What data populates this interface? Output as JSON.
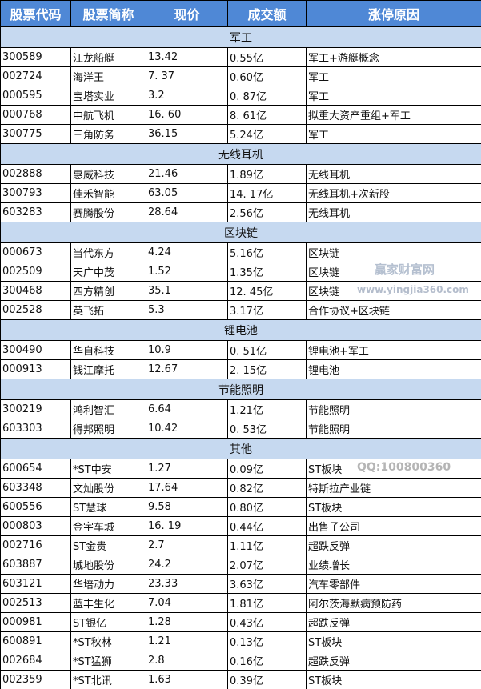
{
  "headers": [
    "股票代码",
    "股票简称",
    "现价",
    "成交额",
    "涨停原因"
  ],
  "sections": [
    {
      "name": "军工",
      "rows": [
        [
          "300589",
          "江龙船艇",
          "13.42",
          "0.55亿",
          "军工+游艇概念"
        ],
        [
          "002724",
          "海洋王",
          "7. 37",
          "0.60亿",
          "军工"
        ],
        [
          "000595",
          "宝塔实业",
          "3.2",
          "0. 87亿",
          "军工"
        ],
        [
          "000768",
          "中航飞机",
          "16. 60",
          "8. 61亿",
          "拟重大资产重组+军工"
        ],
        [
          "300775",
          "三角防务",
          "36.15",
          "5.24亿",
          "军工"
        ]
      ]
    },
    {
      "name": "无线耳机",
      "rows": [
        [
          "002888",
          "惠威科技",
          "21.46",
          "1.89亿",
          "无线耳机"
        ],
        [
          "300793",
          "佳禾智能",
          "63.05",
          "14. 17亿",
          "无线耳机+次新股"
        ],
        [
          "603283",
          "赛腾股份",
          "28.64",
          "2.56亿",
          "无线耳机"
        ]
      ]
    },
    {
      "name": "区块链",
      "rows": [
        [
          "000673",
          "当代东方",
          "4.24",
          "5.16亿",
          "区块链"
        ],
        [
          "002509",
          "天广中茂",
          "1.52",
          "1.35亿",
          "区块链"
        ],
        [
          "300468",
          "四方精创",
          "35.1",
          "12. 45亿",
          "区块链"
        ],
        [
          "002528",
          "英飞拓",
          "5.3",
          "3.17亿",
          "合作协议+区块链"
        ]
      ]
    },
    {
      "name": "锂电池",
      "rows": [
        [
          "300490",
          "华自科技",
          "10.9",
          "0. 51亿",
          "锂电池+军工"
        ],
        [
          "000913",
          "钱江摩托",
          "12.67",
          "2. 15亿",
          "锂电池"
        ]
      ]
    },
    {
      "name": "节能照明",
      "rows": [
        [
          "300219",
          "鸿利智汇",
          "6.64",
          "1.21亿",
          "节能照明"
        ],
        [
          "603303",
          "得邦照明",
          "10.42",
          "0. 53亿",
          "节能照明"
        ]
      ]
    },
    {
      "name": "其他",
      "rows": [
        [
          "600654",
          "*ST中安",
          "1.27",
          "0.09亿",
          "ST板块"
        ],
        [
          "603348",
          "文灿股份",
          "17.64",
          "0.82亿",
          "特斯拉产业链"
        ],
        [
          "600556",
          "ST慧球",
          "9.58",
          "0.80亿",
          "ST板块"
        ],
        [
          "000803",
          "金宇车城",
          "16. 19",
          "0.44亿",
          "出售子公司"
        ],
        [
          "002716",
          "ST金贵",
          "2.7",
          "1.11亿",
          "超跌反弹"
        ],
        [
          "603887",
          "城地股份",
          "24.2",
          "2.07亿",
          "业绩增长"
        ],
        [
          "603121",
          "华培动力",
          "23.33",
          "3.63亿",
          "汽车零部件"
        ],
        [
          "002513",
          "蓝丰生化",
          "7.04",
          "1.81亿",
          "阿尔茨海默病预防药"
        ],
        [
          "000981",
          "ST银亿",
          "1.28",
          "0.43亿",
          "超跌反弹"
        ],
        [
          "600891",
          "*ST秋林",
          "1.21",
          "0.13亿",
          "ST板块"
        ],
        [
          "002684",
          "*ST猛狮",
          "2.8",
          "0.16亿",
          "超跌反弹"
        ],
        [
          "002359",
          "*ST北讯",
          "1.63",
          "0.39亿",
          "ST板块"
        ]
      ]
    }
  ],
  "watermark": {
    "brand": "赢家财富网",
    "url": "www.yingjia360.com",
    "qq": "QQ:100800360"
  }
}
